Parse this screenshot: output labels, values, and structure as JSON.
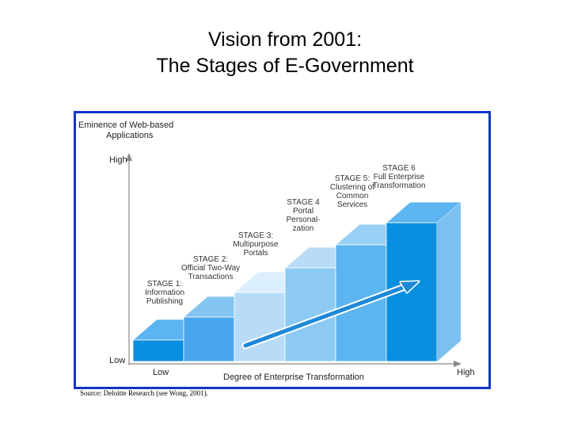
{
  "title": {
    "line1": "Vision from 2001:",
    "line2": "The Stages of E-Government"
  },
  "diagram": {
    "y_axis_title_line1": "Eminence of Web-based",
    "y_axis_title_line2": "Applications",
    "y_high": "High",
    "y_low": "Low",
    "x_low": "Low",
    "x_axis_title": "Degree of Enterprise Transformation",
    "x_high": "High",
    "stages": [
      {
        "id": 1,
        "label_lines": [
          "STAGE 1:",
          "Information",
          "Publishing"
        ],
        "level": 1
      },
      {
        "id": 2,
        "label_lines": [
          "STAGE 2:",
          "Official Two-Way",
          "Transactions"
        ],
        "level": 2
      },
      {
        "id": 3,
        "label_lines": [
          "STAGE 3:",
          "Multipurpose",
          "Portals"
        ],
        "level": 3
      },
      {
        "id": 4,
        "label_lines": [
          "STAGE 4",
          "Portal",
          "Personal-",
          "zation"
        ],
        "level": 4
      },
      {
        "id": 5,
        "label_lines": [
          "STAGE 5:",
          "Clustering of",
          "Common",
          "Services"
        ],
        "level": 5
      },
      {
        "id": 6,
        "label_lines": [
          "STAGE 6",
          "Full Enterprise",
          "Transformation"
        ],
        "level": 6
      }
    ],
    "colors": {
      "frame": "#1433c8",
      "stage_fronts": [
        "#0a8ee0",
        "#4aa6ec",
        "#b8dcf8",
        "#8ccaf4",
        "#5cb4f0",
        "#0a8ee0"
      ],
      "stage_tops": [
        "#5cb4f0",
        "#84c4f2",
        "#dcefff",
        "#b8dcf8",
        "#98d0f6",
        "#5cb4f0"
      ],
      "side": "#7cc0f0",
      "arrow": "#1e88d8"
    }
  },
  "source": "Source: Deloitte Research (see Wong, 2001)."
}
